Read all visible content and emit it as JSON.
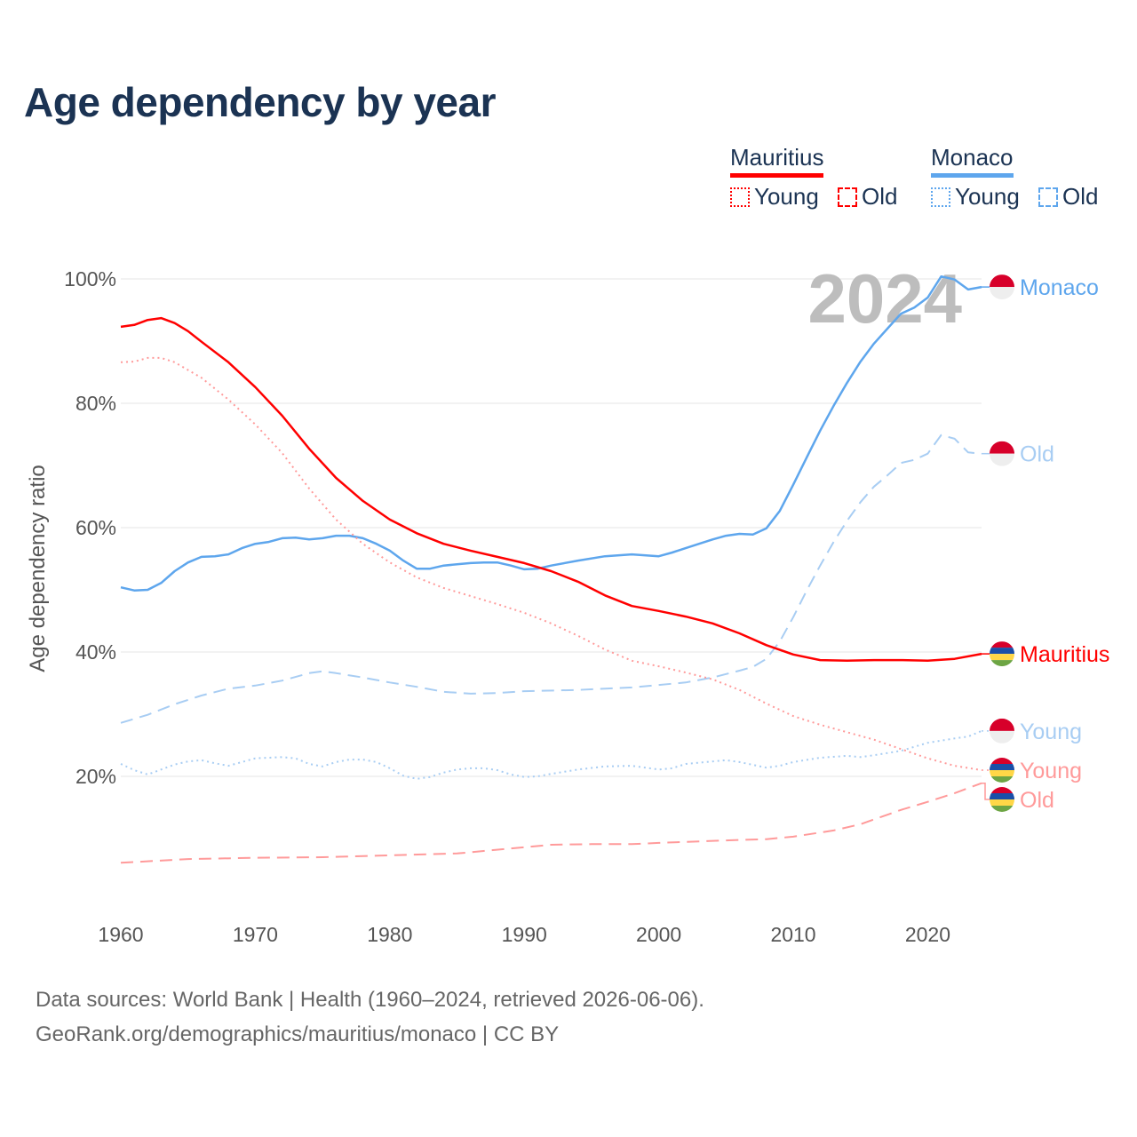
{
  "title": "Age dependency by year",
  "legend": [
    {
      "country": "Mauritius",
      "color": "#ff0000",
      "items": [
        "Young",
        "Old"
      ]
    },
    {
      "country": "Monaco",
      "color": "#5ea6ed",
      "items": [
        "Young",
        "Old"
      ]
    }
  ],
  "year_watermark": "2024",
  "footer": {
    "line1": "Data sources: World Bank | Health (1960–2024, retrieved 2026-06-06).",
    "line2": "GeoRank.org/demographics/mauritius/monaco | CC BY"
  },
  "chart_data": {
    "type": "line",
    "title": "Age dependency by year",
    "xlabel": "",
    "ylabel": "Age dependency ratio",
    "xlim": [
      1960,
      2024
    ],
    "ylim": [
      0,
      100
    ],
    "xticks": [
      1960,
      1970,
      1980,
      1990,
      2000,
      2010,
      2020
    ],
    "yticks": [
      {
        "v": 20,
        "label": "20%"
      },
      {
        "v": 40,
        "label": "40%"
      },
      {
        "v": 60,
        "label": "60%"
      },
      {
        "v": 80,
        "label": "80%"
      },
      {
        "v": 100,
        "label": "100%"
      }
    ],
    "grid": true,
    "series": [
      {
        "name": "Monaco",
        "end_label": "Monaco",
        "country": "Monaco",
        "style": "solid",
        "color": "#5ea6ed",
        "label_color": "#5ea6ed",
        "points": [
          [
            1960,
            50.4
          ],
          [
            1961,
            49.9
          ],
          [
            1962,
            50
          ],
          [
            1963,
            51.1
          ],
          [
            1964,
            53
          ],
          [
            1965,
            54.4
          ],
          [
            1966,
            55.3
          ],
          [
            1967,
            55.4
          ],
          [
            1968,
            55.7
          ],
          [
            1969,
            56.7
          ],
          [
            1970,
            57.4
          ],
          [
            1971,
            57.7
          ],
          [
            1972,
            58.3
          ],
          [
            1973,
            58.4
          ],
          [
            1974,
            58.1
          ],
          [
            1975,
            58.3
          ],
          [
            1976,
            58.7
          ],
          [
            1977,
            58.7
          ],
          [
            1978,
            58.3
          ],
          [
            1979,
            57.4
          ],
          [
            1980,
            56.3
          ],
          [
            1981,
            54.7
          ],
          [
            1982,
            53.4
          ],
          [
            1983,
            53.4
          ],
          [
            1984,
            53.9
          ],
          [
            1985,
            54.1
          ],
          [
            1986,
            54.3
          ],
          [
            1987,
            54.4
          ],
          [
            1988,
            54.4
          ],
          [
            1989,
            53.9
          ],
          [
            1990,
            53.3
          ],
          [
            1991,
            53.4
          ],
          [
            1992,
            53.9
          ],
          [
            1994,
            54.7
          ],
          [
            1996,
            55.4
          ],
          [
            1998,
            55.7
          ],
          [
            2000,
            55.4
          ],
          [
            2001,
            56
          ],
          [
            2002,
            56.7
          ],
          [
            2003,
            57.4
          ],
          [
            2004,
            58.1
          ],
          [
            2005,
            58.7
          ],
          [
            2006,
            59
          ],
          [
            2007,
            58.9
          ],
          [
            2008,
            59.9
          ],
          [
            2009,
            62.7
          ],
          [
            2010,
            66.9
          ],
          [
            2011,
            71.3
          ],
          [
            2012,
            75.6
          ],
          [
            2013,
            79.6
          ],
          [
            2014,
            83.3
          ],
          [
            2015,
            86.7
          ],
          [
            2016,
            89.6
          ],
          [
            2017,
            92
          ],
          [
            2018,
            94.4
          ],
          [
            2019,
            95.4
          ],
          [
            2020,
            97
          ],
          [
            2021,
            100.4
          ],
          [
            2022,
            99.9
          ],
          [
            2023,
            98.3
          ],
          [
            2024,
            98.7
          ]
        ]
      },
      {
        "name": "Monaco Old",
        "end_label": "Old",
        "country": "Monaco",
        "style": "dashed",
        "color": "#a8cdf3",
        "label_color": "#a8cdf3",
        "points": [
          [
            1960,
            28.6
          ],
          [
            1962,
            29.9
          ],
          [
            1964,
            31.6
          ],
          [
            1966,
            33
          ],
          [
            1968,
            34.1
          ],
          [
            1970,
            34.6
          ],
          [
            1972,
            35.4
          ],
          [
            1974,
            36.6
          ],
          [
            1975,
            36.9
          ],
          [
            1976,
            36.6
          ],
          [
            1978,
            35.9
          ],
          [
            1980,
            35.1
          ],
          [
            1982,
            34.4
          ],
          [
            1984,
            33.6
          ],
          [
            1986,
            33.3
          ],
          [
            1988,
            33.4
          ],
          [
            1990,
            33.7
          ],
          [
            1994,
            33.9
          ],
          [
            1998,
            34.3
          ],
          [
            2000,
            34.7
          ],
          [
            2002,
            35.1
          ],
          [
            2004,
            35.9
          ],
          [
            2006,
            37
          ],
          [
            2007,
            37.6
          ],
          [
            2008,
            38.9
          ],
          [
            2009,
            41.7
          ],
          [
            2010,
            45.6
          ],
          [
            2011,
            49.9
          ],
          [
            2012,
            53.9
          ],
          [
            2013,
            57.7
          ],
          [
            2014,
            61.1
          ],
          [
            2015,
            64.1
          ],
          [
            2016,
            66.6
          ],
          [
            2017,
            68.4
          ],
          [
            2018,
            70.4
          ],
          [
            2019,
            70.9
          ],
          [
            2020,
            71.9
          ],
          [
            2021,
            74.9
          ],
          [
            2022,
            74.3
          ],
          [
            2023,
            72.1
          ],
          [
            2024,
            71.9
          ]
        ]
      },
      {
        "name": "Mauritius",
        "end_label": "Mauritius",
        "country": "Mauritius",
        "style": "solid",
        "color": "#ff0000",
        "label_color": "#ff0000",
        "points": [
          [
            1960,
            92.3
          ],
          [
            1961,
            92.6
          ],
          [
            1962,
            93.4
          ],
          [
            1963,
            93.7
          ],
          [
            1964,
            92.9
          ],
          [
            1965,
            91.6
          ],
          [
            1966,
            89.9
          ],
          [
            1968,
            86.6
          ],
          [
            1970,
            82.6
          ],
          [
            1972,
            78
          ],
          [
            1974,
            72.7
          ],
          [
            1976,
            68
          ],
          [
            1978,
            64.3
          ],
          [
            1980,
            61.3
          ],
          [
            1982,
            59.1
          ],
          [
            1984,
            57.4
          ],
          [
            1986,
            56.3
          ],
          [
            1988,
            55.3
          ],
          [
            1990,
            54.3
          ],
          [
            1992,
            53
          ],
          [
            1994,
            51.3
          ],
          [
            1996,
            49.1
          ],
          [
            1998,
            47.4
          ],
          [
            2000,
            46.6
          ],
          [
            2002,
            45.7
          ],
          [
            2004,
            44.6
          ],
          [
            2006,
            43
          ],
          [
            2008,
            41.1
          ],
          [
            2010,
            39.6
          ],
          [
            2012,
            38.7
          ],
          [
            2014,
            38.6
          ],
          [
            2016,
            38.7
          ],
          [
            2018,
            38.7
          ],
          [
            2020,
            38.6
          ],
          [
            2022,
            38.9
          ],
          [
            2024,
            39.7
          ]
        ]
      },
      {
        "name": "Monaco Young",
        "end_label": "Young",
        "country": "Monaco",
        "style": "dotted",
        "color": "#a8cdf3",
        "label_color": "#a8cdf3",
        "points": [
          [
            1960,
            22
          ],
          [
            1961,
            21
          ],
          [
            1962,
            20.3
          ],
          [
            1963,
            21.1
          ],
          [
            1964,
            21.9
          ],
          [
            1965,
            22.4
          ],
          [
            1966,
            22.6
          ],
          [
            1967,
            22.1
          ],
          [
            1968,
            21.7
          ],
          [
            1969,
            22.3
          ],
          [
            1970,
            22.9
          ],
          [
            1972,
            23.1
          ],
          [
            1973,
            22.9
          ],
          [
            1974,
            22
          ],
          [
            1975,
            21.6
          ],
          [
            1976,
            22.3
          ],
          [
            1977,
            22.7
          ],
          [
            1978,
            22.7
          ],
          [
            1979,
            22.3
          ],
          [
            1980,
            21.3
          ],
          [
            1981,
            20.1
          ],
          [
            1982,
            19.6
          ],
          [
            1983,
            19.9
          ],
          [
            1984,
            20.6
          ],
          [
            1985,
            21.1
          ],
          [
            1986,
            21.3
          ],
          [
            1987,
            21.3
          ],
          [
            1988,
            21
          ],
          [
            1989,
            20.3
          ],
          [
            1990,
            19.9
          ],
          [
            1991,
            20
          ],
          [
            1992,
            20.4
          ],
          [
            1994,
            21.1
          ],
          [
            1996,
            21.6
          ],
          [
            1998,
            21.7
          ],
          [
            2000,
            21.1
          ],
          [
            2001,
            21.3
          ],
          [
            2002,
            22
          ],
          [
            2004,
            22.4
          ],
          [
            2005,
            22.6
          ],
          [
            2006,
            22.3
          ],
          [
            2008,
            21.4
          ],
          [
            2009,
            21.7
          ],
          [
            2010,
            22.3
          ],
          [
            2012,
            23
          ],
          [
            2014,
            23.3
          ],
          [
            2015,
            23.1
          ],
          [
            2016,
            23.4
          ],
          [
            2018,
            24.1
          ],
          [
            2020,
            25.4
          ],
          [
            2022,
            26.1
          ],
          [
            2023,
            26.4
          ],
          [
            2024,
            27.3
          ]
        ]
      },
      {
        "name": "Mauritius Young",
        "end_label": "Young",
        "country": "Mauritius",
        "style": "dotted",
        "color": "#ff9a9a",
        "label_color": "#ff9a9a",
        "points": [
          [
            1960,
            86.6
          ],
          [
            1961,
            86.7
          ],
          [
            1962,
            87.3
          ],
          [
            1963,
            87.3
          ],
          [
            1964,
            86.6
          ],
          [
            1966,
            84.1
          ],
          [
            1968,
            80.6
          ],
          [
            1970,
            76.6
          ],
          [
            1972,
            72
          ],
          [
            1974,
            66.3
          ],
          [
            1976,
            61.3
          ],
          [
            1978,
            57.4
          ],
          [
            1980,
            54.4
          ],
          [
            1982,
            52
          ],
          [
            1984,
            50.3
          ],
          [
            1986,
            49
          ],
          [
            1988,
            47.7
          ],
          [
            1990,
            46.3
          ],
          [
            1992,
            44.6
          ],
          [
            1994,
            42.6
          ],
          [
            1996,
            40.4
          ],
          [
            1998,
            38.6
          ],
          [
            2000,
            37.7
          ],
          [
            2002,
            36.7
          ],
          [
            2004,
            35.6
          ],
          [
            2006,
            33.9
          ],
          [
            2008,
            31.7
          ],
          [
            2010,
            29.7
          ],
          [
            2012,
            28.3
          ],
          [
            2014,
            27.1
          ],
          [
            2016,
            25.9
          ],
          [
            2018,
            24.4
          ],
          [
            2020,
            22.9
          ],
          [
            2022,
            21.7
          ],
          [
            2024,
            21
          ]
        ]
      },
      {
        "name": "Mauritius Old",
        "end_label": "Old",
        "country": "Mauritius",
        "style": "dashed",
        "color": "#ff9a9a",
        "label_color": "#ff9a9a",
        "points": [
          [
            1960,
            6.1
          ],
          [
            1965,
            6.7
          ],
          [
            1970,
            6.9
          ],
          [
            1975,
            7
          ],
          [
            1980,
            7.3
          ],
          [
            1985,
            7.6
          ],
          [
            1990,
            8.6
          ],
          [
            1992,
            9
          ],
          [
            1995,
            9.1
          ],
          [
            1998,
            9.1
          ],
          [
            2000,
            9.3
          ],
          [
            2005,
            9.7
          ],
          [
            2008,
            9.9
          ],
          [
            2010,
            10.3
          ],
          [
            2013,
            11.3
          ],
          [
            2015,
            12.3
          ],
          [
            2018,
            14.6
          ],
          [
            2020,
            15.9
          ],
          [
            2022,
            17.3
          ],
          [
            2024,
            18.9
          ]
        ]
      }
    ]
  }
}
